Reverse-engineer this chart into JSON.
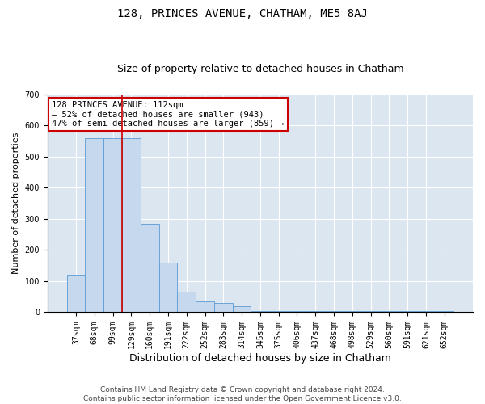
{
  "title": "128, PRINCES AVENUE, CHATHAM, ME5 8AJ",
  "subtitle": "Size of property relative to detached houses in Chatham",
  "xlabel": "Distribution of detached houses by size in Chatham",
  "ylabel": "Number of detached properties",
  "footer_line1": "Contains HM Land Registry data © Crown copyright and database right 2024.",
  "footer_line2": "Contains public sector information licensed under the Open Government Licence v3.0.",
  "categories": [
    "37sqm",
    "68sqm",
    "99sqm",
    "129sqm",
    "160sqm",
    "191sqm",
    "222sqm",
    "252sqm",
    "283sqm",
    "314sqm",
    "345sqm",
    "375sqm",
    "406sqm",
    "437sqm",
    "468sqm",
    "498sqm",
    "529sqm",
    "560sqm",
    "591sqm",
    "621sqm",
    "652sqm"
  ],
  "values": [
    120,
    560,
    560,
    560,
    285,
    160,
    65,
    35,
    30,
    20,
    5,
    5,
    5,
    5,
    5,
    5,
    5,
    5,
    5,
    5,
    5
  ],
  "bar_color": "#c5d8ee",
  "bar_edge_color": "#5b9bd5",
  "background_color": "#dce6f1",
  "grid_color": "#ffffff",
  "fig_background": "#ffffff",
  "annotation_box_color": "#ffffff",
  "annotation_border_color": "#cc0000",
  "annotation_text_line1": "128 PRINCES AVENUE: 112sqm",
  "annotation_text_line2": "← 52% of detached houses are smaller (943)",
  "annotation_text_line3": "47% of semi-detached houses are larger (859) →",
  "property_line_color": "#cc0000",
  "property_line_index": 2,
  "ylim": [
    0,
    700
  ],
  "yticks": [
    0,
    100,
    200,
    300,
    400,
    500,
    600,
    700
  ],
  "title_fontsize": 10,
  "subtitle_fontsize": 9,
  "ylabel_fontsize": 8,
  "xlabel_fontsize": 9,
  "tick_fontsize": 7,
  "footer_fontsize": 6.5,
  "annotation_fontsize": 7.5
}
